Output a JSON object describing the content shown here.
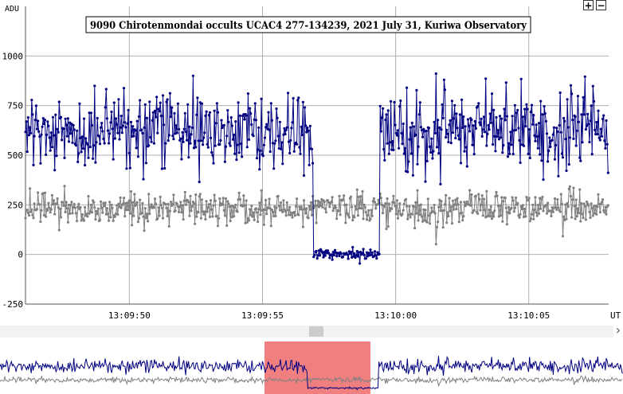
{
  "controls": {
    "zoom_in_label": "+",
    "zoom_out_label": "−",
    "scroll_right_label": "›"
  },
  "colors": {
    "target": "#000080",
    "comparison": "#808080",
    "navigator_window": "#f08080",
    "grid": "#b0b0b0",
    "plot_bg": "#ffffff"
  },
  "chart_data": {
    "type": "line",
    "title": "9090 Chirotenmondai occults UCAC4 277-134239, 2021 July 31, Kuriwa Observatory",
    "ylabel": "ADU",
    "xlabel": "UT",
    "ylim": [
      -250,
      1250
    ],
    "yticks": [
      -250,
      0,
      250,
      500,
      750,
      1000
    ],
    "ytick_labels": [
      "-250",
      "0",
      "250",
      "500",
      "750",
      "1000"
    ],
    "xlim": [
      "13:09:46.1",
      "13:10:08.0"
    ],
    "xticks": [
      "13:09:50",
      "13:09:55",
      "13:10:00",
      "13:10:05"
    ],
    "grid": true,
    "legend": "none",
    "sample_interval_s": 0.0333,
    "series": [
      {
        "name": "",
        "baseline_level": 630,
        "baseline_scatter": 120,
        "occultation_start": "13:09:56.9",
        "occultation_end": "13:09:59.4",
        "occultation_level": 0,
        "occultation_scatter": 15
      },
      {
        "name": "",
        "baseline_level": 230,
        "baseline_scatter": 55
      }
    ]
  }
}
